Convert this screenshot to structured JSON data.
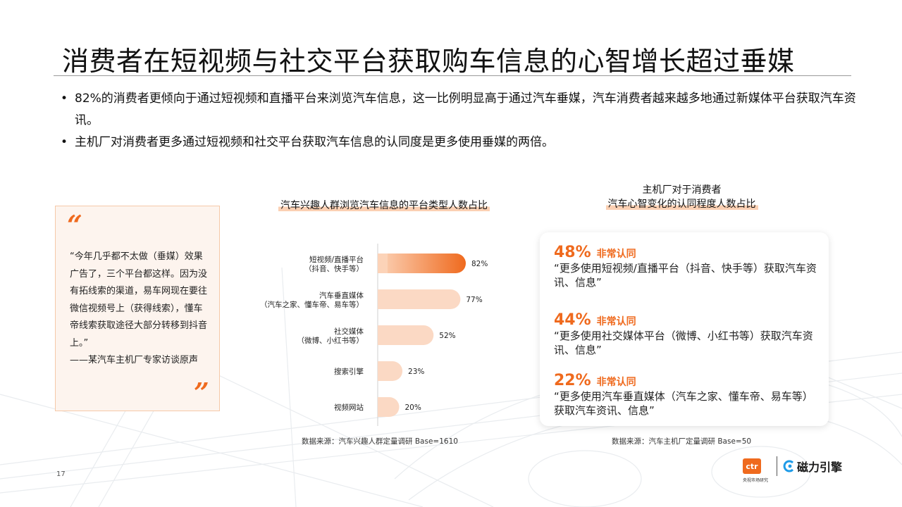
{
  "title": "消费者在短视频与社交平台获取购车信息的心智增长超过垂媒",
  "bullets": [
    "82%的消费者更倾向于通过短视频和直播平台来浏览汽车信息，这一比例明显高于通过汽车垂媒，汽车消费者越来越多地通过新媒体平台获取汽车资讯。",
    "主机厂对消费者更多通过短视频和社交平台获取汽车信息的认同度是更多使用垂媒的两倍。"
  ],
  "quote": {
    "open_mark": "“",
    "close_mark": "”",
    "text": "“今年几乎都不太做（垂媒）效果广告了，三个平台都这样。因为没有拓线索的渠道，易车网现在要往微信视频号上（获得线索），懂车帝线索获取途径大部分转移到抖音上。”",
    "attribution": "——某汽车主机厂专家访谈原声"
  },
  "left_chart_title": "汽车兴趣人群浏览汽车信息的平台类型人数占比",
  "right_chart_title_line1": "主机厂对于消费者",
  "right_chart_title_line2": "汽车心智变化的认同程度人数占比",
  "chart_data": {
    "type": "bar",
    "orientation": "horizontal",
    "title": "汽车兴趣人群浏览汽车信息的平台类型人数占比",
    "categories": [
      {
        "line1": "短视频/直播平台",
        "line2": "（抖音、快手等）"
      },
      {
        "line1": "汽车垂直媒体",
        "line2": "（汽车之家、懂车帝、易车等）"
      },
      {
        "line1": "社交媒体",
        "line2": "（微博、小红书等）"
      },
      {
        "line1": "搜索引擎",
        "line2": ""
      },
      {
        "line1": "视频网站",
        "line2": ""
      }
    ],
    "values": [
      82,
      77,
      52,
      23,
      20
    ],
    "value_labels": [
      "82%",
      "77%",
      "52%",
      "23%",
      "20%"
    ],
    "unit": "%",
    "xlim": [
      0,
      100
    ],
    "grid": false,
    "highlight_color": "#ef6a1e",
    "base_color": "#fbd9c4"
  },
  "left_source": "数据来源：汽车兴趣人群定量调研 Base=1610",
  "stats": [
    {
      "pct": "48%",
      "label": "非常认同",
      "text": "“更多使用短视频/直播平台（抖音、快手等）获取汽车资讯、信息”"
    },
    {
      "pct": "44%",
      "label": "非常认同",
      "text": "“更多使用社交媒体平台（微博、小红书等）获取汽车资讯、信息”"
    },
    {
      "pct": "22%",
      "label": "非常认同",
      "text": "“更多使用汽车垂直媒体（汽车之家、懂车帝、易车等）获取汽车资讯、信息”"
    }
  ],
  "right_source": "数据来源：汽车主机厂定量调研 Base=50",
  "page_number": "17",
  "logo_ctr": "ctr",
  "logo_ctr_sub": "央视市场研究",
  "logo_ci": "磁力引擎",
  "colors": {
    "accent": "#ef6a1e"
  }
}
